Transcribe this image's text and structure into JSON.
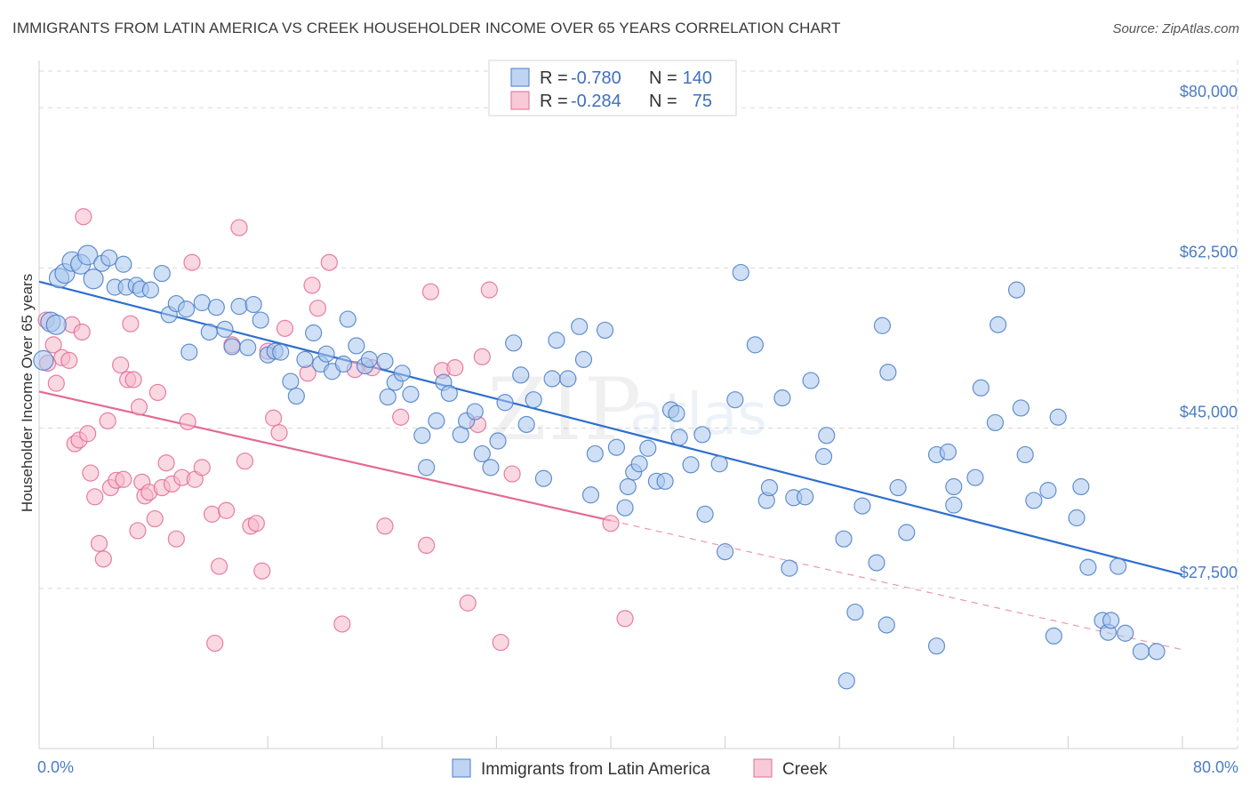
{
  "title": "IMMIGRANTS FROM LATIN AMERICA VS CREEK HOUSEHOLDER INCOME OVER 65 YEARS CORRELATION CHART",
  "source": "Source: ZipAtlas.com",
  "watermark": {
    "zip": "ZIP",
    "atlas": "atlas"
  },
  "colors": {
    "blue": "#4a7cc7",
    "blue_fill": "#a8c6ee",
    "blue_line": "#2f6fcf",
    "pink": "#e36a94",
    "pink_fill": "#f5b8cb",
    "grid": "#d8d8d8"
  },
  "legend": {
    "r_label": "R =",
    "n_label": "N =",
    "rows": [
      {
        "name": "Immigrants from Latin America",
        "r": "-0.780",
        "n": "140"
      },
      {
        "name": "Creek",
        "r": "-0.284",
        "n": "75"
      }
    ]
  },
  "chart_data": {
    "type": "scatter",
    "title": "IMMIGRANTS FROM LATIN AMERICA VS CREEK HOUSEHOLDER INCOME OVER 65 YEARS CORRELATION CHART",
    "xlabel": "",
    "ylabel": "Householder Income Over 65 years",
    "xlim": [
      0,
      80
    ],
    "ylim": [
      10000,
      84000
    ],
    "x_tick_labels": [
      "0.0%",
      "80.0%"
    ],
    "y_ticks": [
      27500,
      45000,
      62500,
      80000
    ],
    "y_tick_labels": [
      "$27,500",
      "$45,000",
      "$62,500",
      "$80,000"
    ],
    "legend_position": "top-center",
    "series": [
      {
        "name": "Immigrants from Latin America",
        "color": "#4a7cc7",
        "trend": {
          "x": [
            0,
            80
          ],
          "y": [
            61000,
            29000
          ],
          "solid_until": 80
        },
        "points": [
          [
            0.3,
            52.4
          ],
          [
            0.8,
            56.6
          ],
          [
            1.2,
            56.3
          ],
          [
            1.4,
            61.4
          ],
          [
            1.8,
            61.9
          ],
          [
            2.3,
            63.2
          ],
          [
            2.9,
            62.9
          ],
          [
            3.4,
            63.9
          ],
          [
            3.8,
            61.3
          ],
          [
            4.4,
            63.0
          ],
          [
            4.9,
            63.6
          ],
          [
            5.3,
            60.4
          ],
          [
            5.9,
            62.9
          ],
          [
            6.1,
            60.4
          ],
          [
            6.8,
            60.6
          ],
          [
            7.1,
            60.2
          ],
          [
            7.8,
            60.1
          ],
          [
            8.6,
            61.9
          ],
          [
            9.1,
            57.4
          ],
          [
            9.6,
            58.6
          ],
          [
            10.3,
            58.0
          ],
          [
            10.5,
            53.3
          ],
          [
            11.4,
            58.7
          ],
          [
            11.9,
            55.5
          ],
          [
            12.4,
            58.2
          ],
          [
            13.0,
            55.8
          ],
          [
            13.5,
            53.9
          ],
          [
            14.0,
            58.3
          ],
          [
            14.6,
            53.8
          ],
          [
            15.0,
            58.5
          ],
          [
            15.5,
            56.8
          ],
          [
            16.0,
            53.0
          ],
          [
            16.5,
            53.4
          ],
          [
            16.9,
            53.3
          ],
          [
            17.6,
            50.1
          ],
          [
            18.0,
            48.5
          ],
          [
            18.6,
            52.5
          ],
          [
            19.2,
            55.4
          ],
          [
            19.7,
            52.0
          ],
          [
            20.1,
            53.1
          ],
          [
            20.5,
            51.2
          ],
          [
            21.3,
            52.0
          ],
          [
            21.6,
            56.9
          ],
          [
            22.2,
            54.0
          ],
          [
            22.8,
            51.8
          ],
          [
            23.1,
            52.5
          ],
          [
            24.2,
            52.3
          ],
          [
            24.4,
            48.4
          ],
          [
            24.9,
            50.0
          ],
          [
            25.4,
            51.0
          ],
          [
            26.0,
            48.7
          ],
          [
            26.8,
            44.2
          ],
          [
            27.1,
            40.7
          ],
          [
            27.8,
            45.8
          ],
          [
            28.3,
            50.0
          ],
          [
            28.7,
            48.8
          ],
          [
            29.5,
            44.3
          ],
          [
            29.9,
            45.8
          ],
          [
            30.5,
            46.8
          ],
          [
            31.0,
            42.2
          ],
          [
            31.6,
            40.7
          ],
          [
            32.1,
            43.6
          ],
          [
            32.6,
            47.8
          ],
          [
            33.2,
            54.3
          ],
          [
            33.7,
            50.8
          ],
          [
            34.1,
            45.4
          ],
          [
            34.6,
            48.1
          ],
          [
            35.3,
            39.5
          ],
          [
            35.9,
            50.4
          ],
          [
            36.2,
            54.6
          ],
          [
            37.0,
            50.4
          ],
          [
            37.8,
            56.1
          ],
          [
            38.1,
            52.5
          ],
          [
            38.6,
            37.7
          ],
          [
            38.9,
            42.2
          ],
          [
            39.6,
            55.7
          ],
          [
            40.4,
            42.9
          ],
          [
            41.0,
            36.3
          ],
          [
            41.2,
            38.6
          ],
          [
            41.6,
            40.2
          ],
          [
            42.0,
            41.1
          ],
          [
            42.6,
            42.8
          ],
          [
            43.2,
            39.2
          ],
          [
            43.8,
            39.2
          ],
          [
            44.2,
            47.0
          ],
          [
            44.6,
            46.6
          ],
          [
            44.8,
            44.0
          ],
          [
            45.6,
            41.0
          ],
          [
            46.4,
            44.3
          ],
          [
            46.6,
            35.6
          ],
          [
            47.6,
            41.1
          ],
          [
            48.0,
            31.5
          ],
          [
            48.7,
            48.1
          ],
          [
            49.1,
            62.0
          ],
          [
            50.1,
            54.1
          ],
          [
            50.9,
            37.1
          ],
          [
            51.1,
            38.5
          ],
          [
            52.0,
            48.3
          ],
          [
            52.5,
            29.7
          ],
          [
            52.8,
            37.4
          ],
          [
            53.6,
            37.5
          ],
          [
            54.0,
            50.2
          ],
          [
            54.9,
            41.9
          ],
          [
            55.1,
            44.2
          ],
          [
            56.3,
            32.9
          ],
          [
            57.1,
            24.9
          ],
          [
            57.6,
            36.5
          ],
          [
            58.6,
            30.3
          ],
          [
            59.0,
            56.2
          ],
          [
            59.4,
            51.1
          ],
          [
            60.1,
            38.5
          ],
          [
            60.7,
            33.6
          ],
          [
            62.8,
            21.2
          ],
          [
            62.8,
            42.1
          ],
          [
            63.6,
            42.4
          ],
          [
            64.0,
            38.6
          ],
          [
            64.0,
            36.6
          ],
          [
            65.5,
            39.6
          ],
          [
            65.9,
            49.4
          ],
          [
            66.9,
            45.6
          ],
          [
            67.1,
            56.3
          ],
          [
            68.4,
            60.1
          ],
          [
            68.7,
            47.2
          ],
          [
            69.0,
            42.1
          ],
          [
            69.6,
            37.1
          ],
          [
            70.6,
            38.2
          ],
          [
            71.3,
            46.2
          ],
          [
            72.6,
            35.2
          ],
          [
            72.9,
            38.6
          ],
          [
            73.4,
            29.8
          ],
          [
            74.4,
            24.0
          ],
          [
            74.8,
            22.7
          ],
          [
            75.0,
            24.0
          ],
          [
            75.5,
            29.9
          ],
          [
            76.0,
            22.6
          ],
          [
            77.1,
            20.6
          ],
          [
            78.2,
            20.6
          ],
          [
            59.3,
            23.5
          ],
          [
            71.0,
            22.3
          ],
          [
            56.5,
            17.4
          ]
        ]
      },
      {
        "name": "Creek",
        "color": "#e36a94",
        "trend": {
          "x": [
            0,
            80
          ],
          "y": [
            49000,
            20800
          ],
          "solid_until": 40
        },
        "points": [
          [
            0.5,
            56.8
          ],
          [
            0.6,
            52.1
          ],
          [
            1.0,
            54.1
          ],
          [
            1.2,
            49.9
          ],
          [
            1.6,
            52.7
          ],
          [
            2.1,
            52.4
          ],
          [
            2.3,
            56.3
          ],
          [
            2.5,
            43.3
          ],
          [
            2.8,
            43.7
          ],
          [
            3.0,
            55.5
          ],
          [
            3.1,
            68.1
          ],
          [
            3.4,
            44.4
          ],
          [
            3.6,
            40.1
          ],
          [
            3.9,
            37.5
          ],
          [
            4.2,
            32.4
          ],
          [
            4.5,
            30.7
          ],
          [
            4.8,
            45.8
          ],
          [
            5.0,
            38.5
          ],
          [
            5.4,
            39.3
          ],
          [
            5.7,
            51.9
          ],
          [
            5.9,
            39.4
          ],
          [
            6.2,
            50.3
          ],
          [
            6.4,
            56.4
          ],
          [
            6.6,
            50.3
          ],
          [
            6.9,
            33.8
          ],
          [
            7.0,
            47.3
          ],
          [
            7.2,
            39.1
          ],
          [
            7.4,
            37.6
          ],
          [
            7.7,
            38.0
          ],
          [
            8.1,
            35.1
          ],
          [
            8.3,
            48.9
          ],
          [
            8.6,
            38.5
          ],
          [
            8.9,
            41.2
          ],
          [
            9.3,
            38.9
          ],
          [
            9.6,
            32.9
          ],
          [
            10.0,
            39.6
          ],
          [
            10.4,
            45.7
          ],
          [
            10.7,
            63.1
          ],
          [
            10.9,
            39.4
          ],
          [
            11.4,
            40.7
          ],
          [
            12.1,
            35.6
          ],
          [
            12.3,
            21.5
          ],
          [
            12.6,
            29.9
          ],
          [
            13.1,
            36.0
          ],
          [
            13.5,
            54.1
          ],
          [
            14.0,
            66.9
          ],
          [
            14.4,
            41.4
          ],
          [
            14.8,
            34.3
          ],
          [
            15.2,
            34.6
          ],
          [
            15.6,
            29.4
          ],
          [
            16.0,
            53.4
          ],
          [
            16.4,
            46.1
          ],
          [
            16.8,
            44.5
          ],
          [
            17.2,
            55.9
          ],
          [
            18.8,
            51.0
          ],
          [
            19.1,
            60.6
          ],
          [
            19.5,
            58.1
          ],
          [
            20.3,
            63.1
          ],
          [
            21.2,
            23.6
          ],
          [
            22.1,
            51.4
          ],
          [
            23.3,
            51.6
          ],
          [
            24.2,
            34.3
          ],
          [
            25.3,
            46.2
          ],
          [
            27.1,
            32.2
          ],
          [
            27.4,
            59.9
          ],
          [
            28.2,
            51.3
          ],
          [
            29.1,
            51.6
          ],
          [
            30.0,
            25.9
          ],
          [
            30.7,
            45.4
          ],
          [
            31.0,
            52.8
          ],
          [
            31.5,
            60.1
          ],
          [
            32.3,
            21.6
          ],
          [
            33.1,
            40.0
          ],
          [
            40.0,
            34.6
          ],
          [
            41.0,
            24.2
          ]
        ]
      }
    ]
  }
}
